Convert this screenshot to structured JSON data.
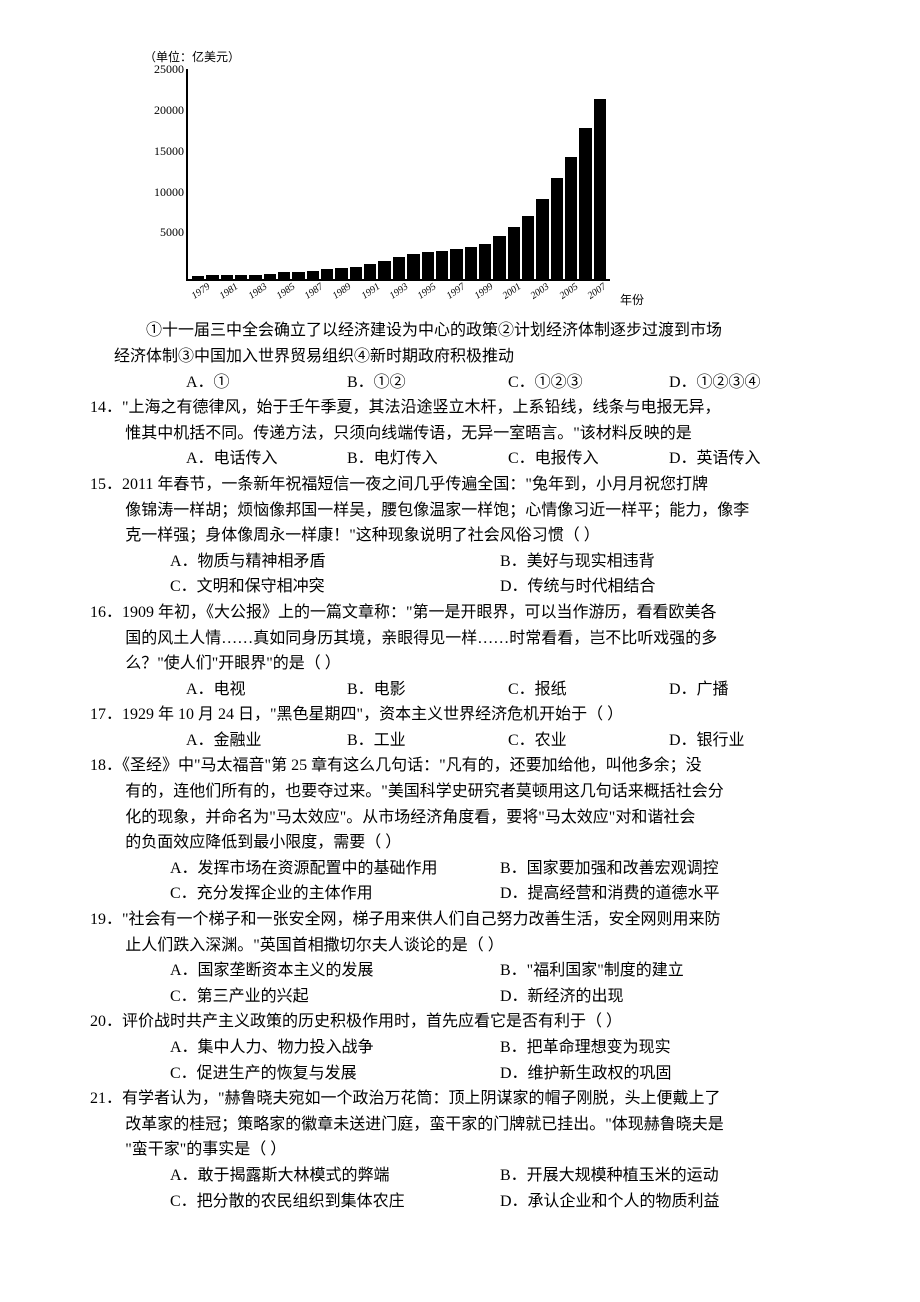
{
  "chart": {
    "unit_label": "（单位：亿美元）",
    "x_axis_label": "年份",
    "ylim": [
      0,
      25000
    ],
    "ytick_step": 5000,
    "y_ticks": [
      "25000",
      "20000",
      "15000",
      "10000",
      "5000",
      ""
    ],
    "background_color": "#ffffff",
    "bar_color": "#000000",
    "axis_color": "#000000",
    "bar_width_ratio": 1,
    "type": "bar",
    "label_fontsize": 12,
    "tick_fontsize": 12,
    "series": [
      {
        "year": "1979",
        "value": 400
      },
      {
        "year": "",
        "value": 450
      },
      {
        "year": "1981",
        "value": 500
      },
      {
        "year": "",
        "value": 520
      },
      {
        "year": "1983",
        "value": 550
      },
      {
        "year": "",
        "value": 600
      },
      {
        "year": "1985",
        "value": 800
      },
      {
        "year": "",
        "value": 900
      },
      {
        "year": "1987",
        "value": 1000
      },
      {
        "year": "",
        "value": 1200
      },
      {
        "year": "1989",
        "value": 1300
      },
      {
        "year": "",
        "value": 1500
      },
      {
        "year": "1991",
        "value": 1800
      },
      {
        "year": "",
        "value": 2200
      },
      {
        "year": "1993",
        "value": 2600
      },
      {
        "year": "",
        "value": 3000
      },
      {
        "year": "1995",
        "value": 3200
      },
      {
        "year": "",
        "value": 3400
      },
      {
        "year": "1997",
        "value": 3600
      },
      {
        "year": "",
        "value": 3800
      },
      {
        "year": "1999",
        "value": 4200
      },
      {
        "year": "",
        "value": 5200
      },
      {
        "year": "2001",
        "value": 6200
      },
      {
        "year": "",
        "value": 7500
      },
      {
        "year": "2003",
        "value": 9500
      },
      {
        "year": "",
        "value": 12000
      },
      {
        "year": "2005",
        "value": 14500
      },
      {
        "year": "",
        "value": 18000
      },
      {
        "year": "2007",
        "value": 21500
      }
    ]
  },
  "q13": {
    "stem1": "①十一届三中全会确立了以经济建设为中心的政策②计划经济体制逐步过渡到市场",
    "stem2": "经济体制③中国加入世界贸易组织④新时期政府积极推动",
    "optA": "A．①",
    "optB": "B．①②",
    "optC": "C．①②③",
    "optD": "D．①②③④"
  },
  "q14": {
    "line1": "14．\"上海之有德律风，始于壬午季夏，其法沿途竖立木杆，上系铅线，线条与电报无异，",
    "line2": "惟其中机括不同。传递方法，只须向线端传语，无异一室晤言。\"该材料反映的是",
    "optA": "A．电话传入",
    "optB": "B．电灯传入",
    "optC": "C．电报传入",
    "optD": "D．英语传入"
  },
  "q15": {
    "line1": "15．2011 年春节，一条新年祝福短信一夜之间几乎传遍全国：\"兔年到，小月月祝您打牌",
    "line2": "像锦涛一样胡；烦恼像邦国一样吴，腰包像温家一样饱；心情像习近一样平；能力，像李",
    "line3": "克一样强；身体像周永一样康！\"这种现象说明了社会风俗习惯（  ）",
    "optA": "A．物质与精神相矛盾",
    "optB": "B．美好与现实相违背",
    "optC": "C．文明和保守相冲突",
    "optD": "D．传统与时代相结合"
  },
  "q16": {
    "line1": "16．1909 年初，《大公报》上的一篇文章称：\"第一是开眼界，可以当作游历，看看欧美各",
    "line2": "国的风土人情……真如同身历其境，亲眼得见一样……时常看看，岂不比听戏强的多",
    "line3": "么？\"使人们\"开眼界\"的是（  ）",
    "optA": "A．电视",
    "optB": "B．电影",
    "optC": "C．报纸",
    "optD": "D．广播"
  },
  "q17": {
    "line1": "17．1929 年 10 月 24 日，\"黑色星期四\"，资本主义世界经济危机开始于（  ）",
    "optA": "A．金融业",
    "optB": "B．工业",
    "optC": "C．农业",
    "optD": "D．银行业"
  },
  "q18": {
    "line1": "18．《圣经》中\"马太福音\"第 25 章有这么几句话：\"凡有的，还要加给他，叫他多余；没",
    "line2": "有的，连他们所有的，也要夺过来。\"美国科学史研究者莫顿用这几句话来概括社会分",
    "line3": "化的现象，并命名为\"马太效应\"。从市场经济角度看，要将\"马太效应\"对和谐社会",
    "line4": "的负面效应降低到最小限度，需要（  ）",
    "optA": "A．发挥市场在资源配置中的基础作用",
    "optB": "B．国家要加强和改善宏观调控",
    "optC": "C．充分发挥企业的主体作用",
    "optD": "D．提高经营和消费的道德水平"
  },
  "q19": {
    "line1": "19．\"社会有一个梯子和一张安全网，梯子用来供人们自己努力改善生活，安全网则用来防",
    "line2": "止人们跌入深渊。\"英国首相撒切尔夫人谈论的是（  ）",
    "optA": "A．国家垄断资本主义的发展",
    "optB": "B．\"福利国家\"制度的建立",
    "optC": "C．第三产业的兴起",
    "optD": "D．新经济的出现"
  },
  "q20": {
    "line1": "20．评价战时共产主义政策的历史积极作用时，首先应看它是否有利于（  ）",
    "optA": "A．集中人力、物力投入战争",
    "optB": "B．把革命理想变为现实",
    "optC": "C．促进生产的恢复与发展",
    "optD": "D．维护新生政权的巩固"
  },
  "q21": {
    "line1": "21．有学者认为，\"赫鲁晓夫宛如一个政治万花筒：顶上阴谋家的帽子刚脱，头上便戴上了",
    "line2": "改革家的桂冠；策略家的徽章未送进门庭，蛮干家的门牌就已挂出。\"体现赫鲁晓夫是",
    "line3": "\"蛮干家\"的事实是（  ）",
    "optA": "A．敢于揭露斯大林模式的弊端",
    "optB": "B．开展大规模种植玉米的运动",
    "optC": "C．把分散的农民组织到集体农庄",
    "optD": "D．承认企业和个人的物质利益"
  }
}
